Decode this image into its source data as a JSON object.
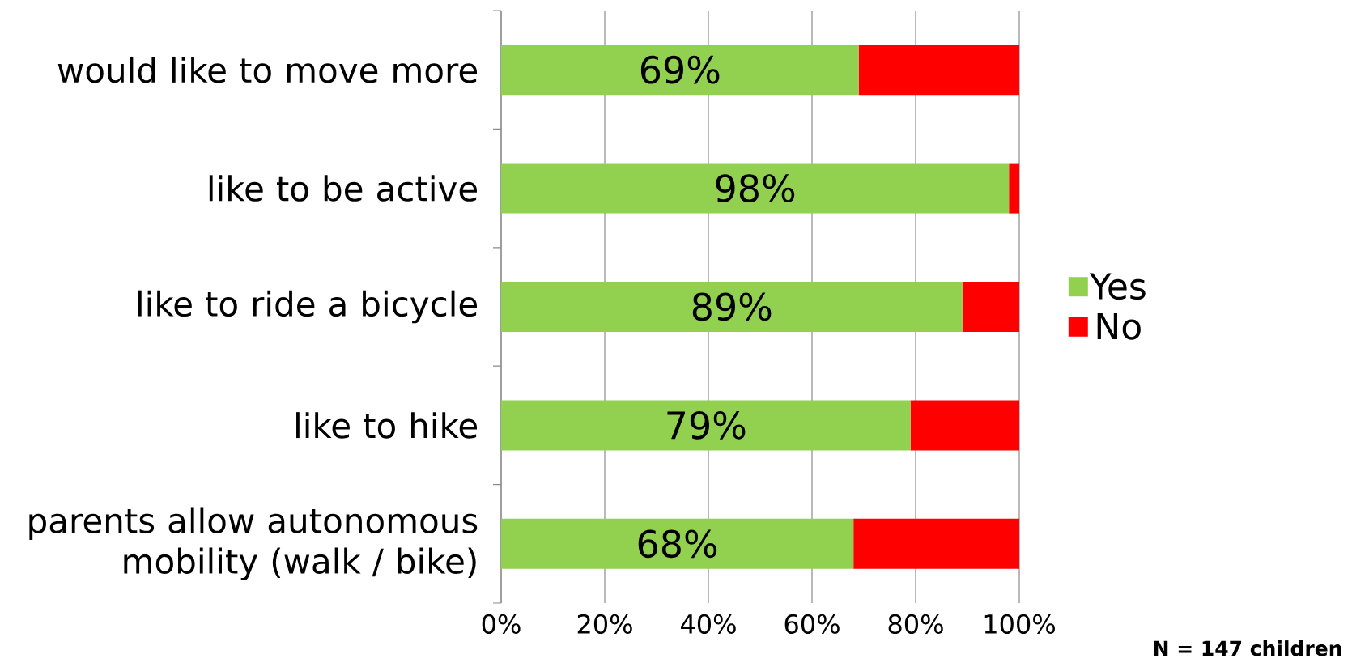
{
  "chart_data": {
    "type": "bar",
    "orientation": "horizontal",
    "stacked": true,
    "categories": [
      "would like to move more",
      "like to be active",
      "like to ride a bicycle",
      "like to hike",
      "parents allow autonomous mobility (walk / bike)"
    ],
    "series": [
      {
        "name": "Yes",
        "color": "#92d050",
        "values": [
          69,
          98,
          89,
          79,
          68
        ],
        "value_labels": [
          "69%",
          "98%",
          "89%",
          "79%",
          "68%"
        ]
      },
      {
        "name": "No",
        "color": "#ff0000",
        "values": [
          31,
          2,
          11,
          21,
          32
        ]
      }
    ],
    "xlim": [
      0,
      100
    ],
    "xticks": [
      {
        "value": 0,
        "label": "0%"
      },
      {
        "value": 20,
        "label": "20%"
      },
      {
        "value": 40,
        "label": "40%"
      },
      {
        "value": 60,
        "label": "60%"
      },
      {
        "value": 80,
        "label": "80%"
      },
      {
        "value": 100,
        "label": "100%"
      }
    ],
    "grid": "x",
    "legend": "right",
    "annotations": [
      "N = 147 children"
    ]
  }
}
